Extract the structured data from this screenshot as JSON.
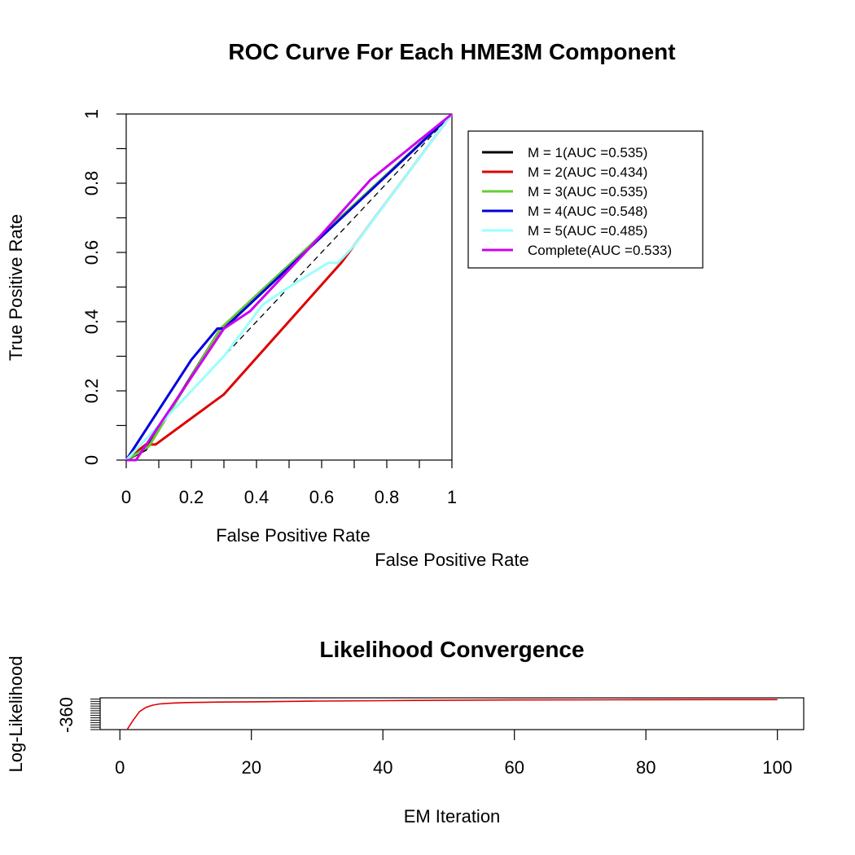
{
  "chart_data": [
    {
      "type": "line",
      "title": "ROC Curve For Each HME3M Component",
      "xlabel": "False Positive Rate",
      "xlabel_secondary": "False Positive Rate",
      "ylabel": "True Positive Rate",
      "xlim": [
        0,
        1
      ],
      "ylim": [
        0,
        1
      ],
      "xticks": [
        "0",
        "0.2",
        "0.4",
        "0.6",
        "0.8",
        "1"
      ],
      "yticks": [
        "0",
        "0.2",
        "0.4",
        "0.6",
        "0.8",
        "1"
      ],
      "xtick_values": [
        0,
        0.2,
        0.4,
        0.6,
        0.8,
        1
      ],
      "ytick_values": [
        0,
        0.2,
        0.4,
        0.6,
        0.8,
        1
      ],
      "minor_xticks": [
        0,
        0.1,
        0.2,
        0.3,
        0.4,
        0.5,
        0.6,
        0.7,
        0.8,
        0.9,
        1
      ],
      "minor_yticks": [
        0,
        0.1,
        0.2,
        0.3,
        0.4,
        0.5,
        0.6,
        0.7,
        0.8,
        0.9,
        1
      ],
      "diagonal_reference": true,
      "legend_position": "top-right",
      "series": [
        {
          "name": "M =  1(AUC =0.535)",
          "color": "#000000",
          "x": [
            0,
            0.06,
            0.29,
            1
          ],
          "y": [
            0,
            0.03,
            0.38,
            1
          ]
        },
        {
          "name": "M =  2(AUC =0.434)",
          "color": "#dd0000",
          "x": [
            0,
            0.06,
            0.09,
            0.3,
            0.66,
            1
          ],
          "y": [
            0,
            0.045,
            0.045,
            0.19,
            0.57,
            1
          ]
        },
        {
          "name": "M =  3(AUC =0.535)",
          "color": "#66cc33",
          "x": [
            0,
            0.07,
            0.29,
            1
          ],
          "y": [
            0,
            0.04,
            0.38,
            1
          ]
        },
        {
          "name": "M =  4(AUC =0.548)",
          "color": "#0000dd",
          "x": [
            0,
            0.2,
            0.28,
            0.3,
            1
          ],
          "y": [
            0,
            0.29,
            0.38,
            0.38,
            1
          ]
        },
        {
          "name": "M =  5(AUC =0.485)",
          "color": "#99ffff",
          "x": [
            0,
            0.15,
            0.3,
            0.42,
            0.5,
            0.62,
            0.65,
            0.7,
            1
          ],
          "y": [
            0,
            0.15,
            0.3,
            0.45,
            0.5,
            0.57,
            0.57,
            0.62,
            1
          ]
        },
        {
          "name": "Complete(AUC =0.533)",
          "color": "#cc00ee",
          "x": [
            0,
            0.03,
            0.3,
            0.38,
            0.55,
            0.75,
            1
          ],
          "y": [
            0,
            0,
            0.38,
            0.43,
            0.6,
            0.81,
            1
          ]
        }
      ]
    },
    {
      "type": "line",
      "title": "Likelihood Convergence",
      "xlabel": "EM Iteration",
      "ylabel": "Log-Likelihood",
      "xlim": [
        -3,
        104
      ],
      "ylim": [
        -360,
        -346.5
      ],
      "xticks": [
        "0",
        "20",
        "40",
        "60",
        "80",
        "100"
      ],
      "xtick_values": [
        0,
        20,
        40,
        60,
        80,
        100
      ],
      "yticks": [
        "-360"
      ],
      "ytick_values": [
        -360
      ],
      "minor_yticks": [
        -360,
        -359,
        -358,
        -357,
        -356,
        -355,
        -354,
        -353,
        -352,
        -351,
        -350,
        -349,
        -348,
        -347
      ],
      "series": [
        {
          "name": "",
          "color": "#dd0000",
          "x": [
            1,
            2,
            3,
            4,
            5,
            6,
            8,
            10,
            15,
            20,
            30,
            40,
            50,
            60,
            70,
            80,
            90,
            100
          ],
          "y": [
            -360.4,
            -356.1,
            -352.3,
            -350.5,
            -349.6,
            -349.1,
            -348.7,
            -348.5,
            -348.3,
            -348.2,
            -347.9,
            -347.7,
            -347.5,
            -347.4,
            -347.35,
            -347.3,
            -347.27,
            -347.25
          ]
        }
      ]
    }
  ]
}
